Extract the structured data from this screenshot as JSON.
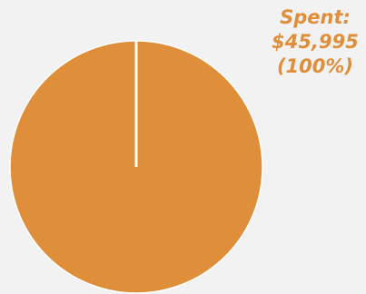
{
  "chart_data": {
    "type": "pie",
    "slices": [
      {
        "label": "Spent",
        "value": 45995,
        "percent": 100,
        "value_label": "$45,995",
        "percent_label": "(100%)",
        "label_text": "Spent:",
        "color": "#df8e3a"
      }
    ],
    "title": "",
    "legend": "none",
    "label_color": "#df8e3a",
    "background": "#f3f2f2",
    "edge_color": "#ffffff"
  }
}
